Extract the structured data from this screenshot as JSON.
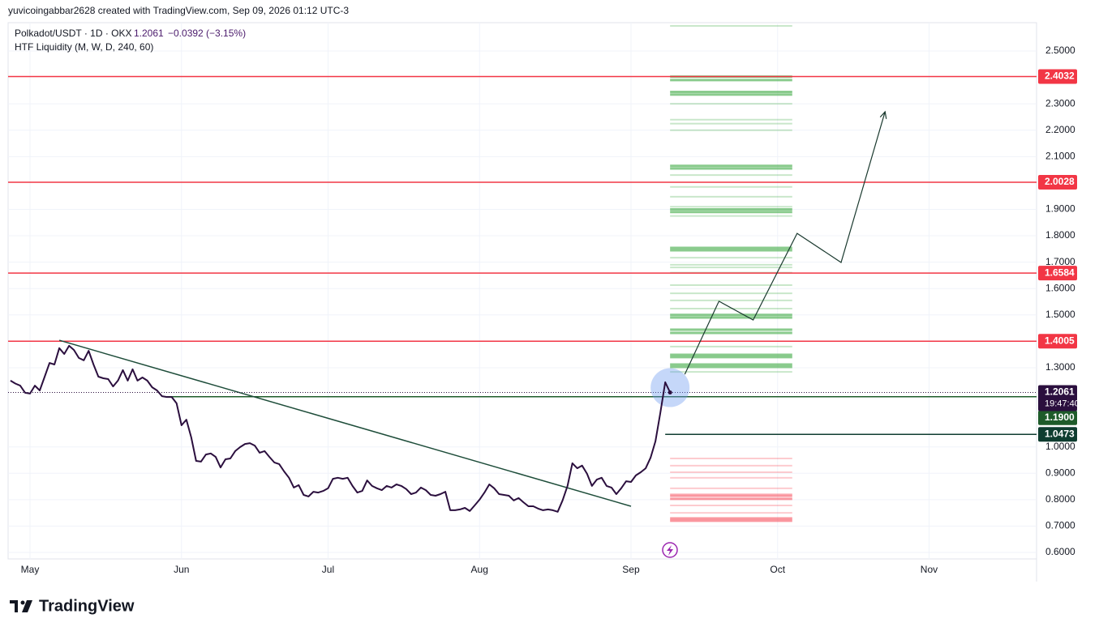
{
  "chart_data": {
    "type": "line",
    "header": "yuvicoingabbar2628 created with TradingView.com, Sep 09, 2026 01:12 UTC-3",
    "title": "Polkadot/USDT · 1D · OKX",
    "change": "−0.0392 (−3.15%)",
    "indicator": "HTF Liquidity (M, W, D, 240, 60)",
    "brand": "TradingView",
    "color": "#2b0f3e",
    "categories": [
      null,
      null,
      null,
      null,
      "May",
      null,
      null,
      null,
      null,
      null,
      null,
      null,
      null,
      null,
      null,
      null,
      null,
      null,
      null,
      null,
      null,
      null,
      null,
      null,
      null,
      null,
      null,
      null,
      null,
      null,
      null,
      null,
      null,
      null,
      null,
      "Jun",
      null,
      null,
      null,
      null,
      null,
      null,
      null,
      null,
      null,
      null,
      null,
      null,
      null,
      null,
      null,
      null,
      null,
      null,
      null,
      null,
      null,
      null,
      null,
      null,
      null,
      null,
      null,
      null,
      null,
      "Jul",
      null,
      null,
      null,
      null,
      null,
      null,
      null,
      null,
      null,
      null,
      null,
      null,
      null,
      null,
      null,
      null,
      null,
      null,
      null,
      null,
      null,
      null,
      null,
      null,
      null,
      null,
      null,
      null,
      null,
      null,
      "Aug",
      null,
      null,
      null,
      null,
      null,
      null,
      null,
      null,
      null,
      null,
      null,
      null,
      null,
      null,
      null,
      null,
      null,
      null,
      null,
      null,
      null,
      null,
      null,
      null,
      null,
      null,
      null,
      null,
      null,
      null,
      "Sep",
      null,
      null,
      null,
      null,
      null,
      null,
      null,
      null,
      null,
      null,
      null,
      null,
      null,
      null,
      null,
      null,
      null,
      null,
      null,
      null,
      null,
      null,
      null,
      null,
      null,
      null,
      null,
      null,
      null,
      "Oct",
      null,
      null,
      null,
      null,
      null,
      null,
      null,
      null,
      null,
      null,
      null,
      null,
      null,
      null,
      null,
      null,
      null,
      null,
      null,
      null,
      null,
      null,
      null,
      null,
      null,
      null,
      null,
      null,
      null,
      null,
      "Nov",
      null,
      null,
      null,
      null,
      null,
      null,
      null,
      null,
      null,
      null,
      null,
      null,
      null,
      null,
      null,
      null,
      null,
      null,
      null,
      null,
      null,
      null
    ],
    "values": [
      1.251,
      1.24,
      1.232,
      1.205,
      1.202,
      1.232,
      1.214,
      1.266,
      1.318,
      1.312,
      1.374,
      1.352,
      1.383,
      1.367,
      1.337,
      1.328,
      1.364,
      1.312,
      1.266,
      1.26,
      1.257,
      1.229,
      1.251,
      1.291,
      1.251,
      1.294,
      1.251,
      1.263,
      1.251,
      1.226,
      1.214,
      1.192,
      1.189,
      1.189,
      1.165,
      1.082,
      1.103,
      1.036,
      0.947,
      0.944,
      0.971,
      0.975,
      0.962,
      0.922,
      0.953,
      0.956,
      0.984,
      0.999,
      1.011,
      1.014,
      1.005,
      0.978,
      0.984,
      0.962,
      0.941,
      0.935,
      0.907,
      0.883,
      0.846,
      0.855,
      0.818,
      0.812,
      0.83,
      0.827,
      0.833,
      0.843,
      0.879,
      0.883,
      0.879,
      0.883,
      0.852,
      0.827,
      0.833,
      0.873,
      0.852,
      0.843,
      0.836,
      0.852,
      0.846,
      0.858,
      0.852,
      0.84,
      0.821,
      0.827,
      0.846,
      0.836,
      0.818,
      0.815,
      0.821,
      0.83,
      0.76,
      0.76,
      0.763,
      0.769,
      0.757,
      0.778,
      0.8,
      0.827,
      0.858,
      0.843,
      0.821,
      0.818,
      0.815,
      0.797,
      0.806,
      0.79,
      0.775,
      0.775,
      0.766,
      0.76,
      0.763,
      0.76,
      0.754,
      0.797,
      0.852,
      0.938,
      0.919,
      0.929,
      0.898,
      0.852,
      0.876,
      0.883,
      0.852,
      0.846,
      0.821,
      0.843,
      0.87,
      0.867,
      0.892,
      0.904,
      0.919,
      0.959,
      1.021,
      1.128,
      1.245,
      1.2061,
      null,
      null,
      null,
      null,
      null,
      null,
      null,
      null,
      null,
      null,
      null,
      null,
      null,
      null,
      null,
      null,
      null,
      null,
      null,
      null,
      null,
      null,
      null,
      null,
      null,
      null,
      null,
      null,
      null,
      null,
      null,
      null,
      null,
      null,
      null,
      null,
      null,
      null,
      null,
      null,
      null,
      null,
      null,
      null,
      null,
      null,
      null,
      null,
      null,
      null,
      null,
      null,
      null,
      null,
      null,
      null,
      null,
      null,
      null,
      null,
      null,
      null,
      null,
      null,
      null,
      null,
      null,
      null,
      null,
      null,
      null,
      null,
      null,
      null,
      null
    ],
    "countdown": "19:47:40",
    "ylim": [
      0.5755,
      2.6074
    ],
    "yticks": [
      {
        "value": 2.5,
        "label": "2.5000"
      },
      {
        "value": 2.3,
        "label": "2.3000"
      },
      {
        "value": 2.2,
        "label": "2.2000"
      },
      {
        "value": 2.1,
        "label": "2.1000"
      },
      {
        "value": 1.9,
        "label": "1.9000"
      },
      {
        "value": 1.8,
        "label": "1.8000"
      },
      {
        "value": 1.7,
        "label": "1.7000"
      },
      {
        "value": 1.6,
        "label": "1.6000"
      },
      {
        "value": 1.5,
        "label": "1.5000"
      },
      {
        "value": 1.3,
        "label": "1.3000"
      },
      {
        "value": 1.0,
        "label": "1.0000"
      },
      {
        "value": 0.9,
        "label": "0.9000"
      },
      {
        "value": 0.8,
        "label": "0.8000"
      },
      {
        "value": 0.7,
        "label": "0.7000"
      },
      {
        "value": 0.6,
        "label": "0.6000"
      }
    ],
    "grid": true,
    "levels": [
      {
        "value": 2.4032,
        "color": "#f23645"
      },
      {
        "value": 2.0028,
        "color": "#f23645"
      },
      {
        "value": 1.6584,
        "color": "#f23645"
      },
      {
        "value": 1.4005,
        "color": "#f23645"
      }
    ],
    "hlines": [
      {
        "value": 1.19,
        "label": "1.1900",
        "color": "#1e5b2a",
        "start": 32
      },
      {
        "value": 1.0473,
        "color": "#0f3d30",
        "start": 134
      }
    ],
    "trendline": {
      "x": [
        10,
        127
      ],
      "y": [
        1.404,
        0.775
      ],
      "color": "#1e4d3a"
    },
    "projection": {
      "x": [
        138,
        145,
        152,
        161,
        170,
        179
      ],
      "y": [
        1.275,
        1.552,
        1.481,
        1.809,
        1.699,
        2.27
      ],
      "color": "#1b3a2f"
    },
    "liquidity": {
      "x": [
        135,
        160
      ],
      "buy_color": "#4caf50",
      "sell_color": "#f7525f",
      "buy_strong": [
        2.403,
        2.39,
        2.345,
        2.335,
        2.065,
        2.055,
        1.9,
        1.89,
        1.754,
        1.745,
        1.5,
        1.49,
        1.444,
        1.432,
        1.349,
        1.34,
        1.312,
        1.303
      ],
      "buy_weak": [
        2.595,
        2.3,
        2.24,
        2.225,
        2.2,
        2.03,
        1.985,
        1.948,
        1.91,
        1.875,
        1.717,
        1.69,
        1.68,
        1.66,
        1.613,
        1.582,
        1.555,
        1.524,
        1.38,
        1.284
      ],
      "sell_strong": [
        0.815,
        0.803,
        0.729,
        0.72
      ],
      "sell_weak": [
        0.956,
        0.929,
        0.904,
        0.883,
        0.843,
        0.821,
        0.778,
        0.75
      ]
    }
  }
}
